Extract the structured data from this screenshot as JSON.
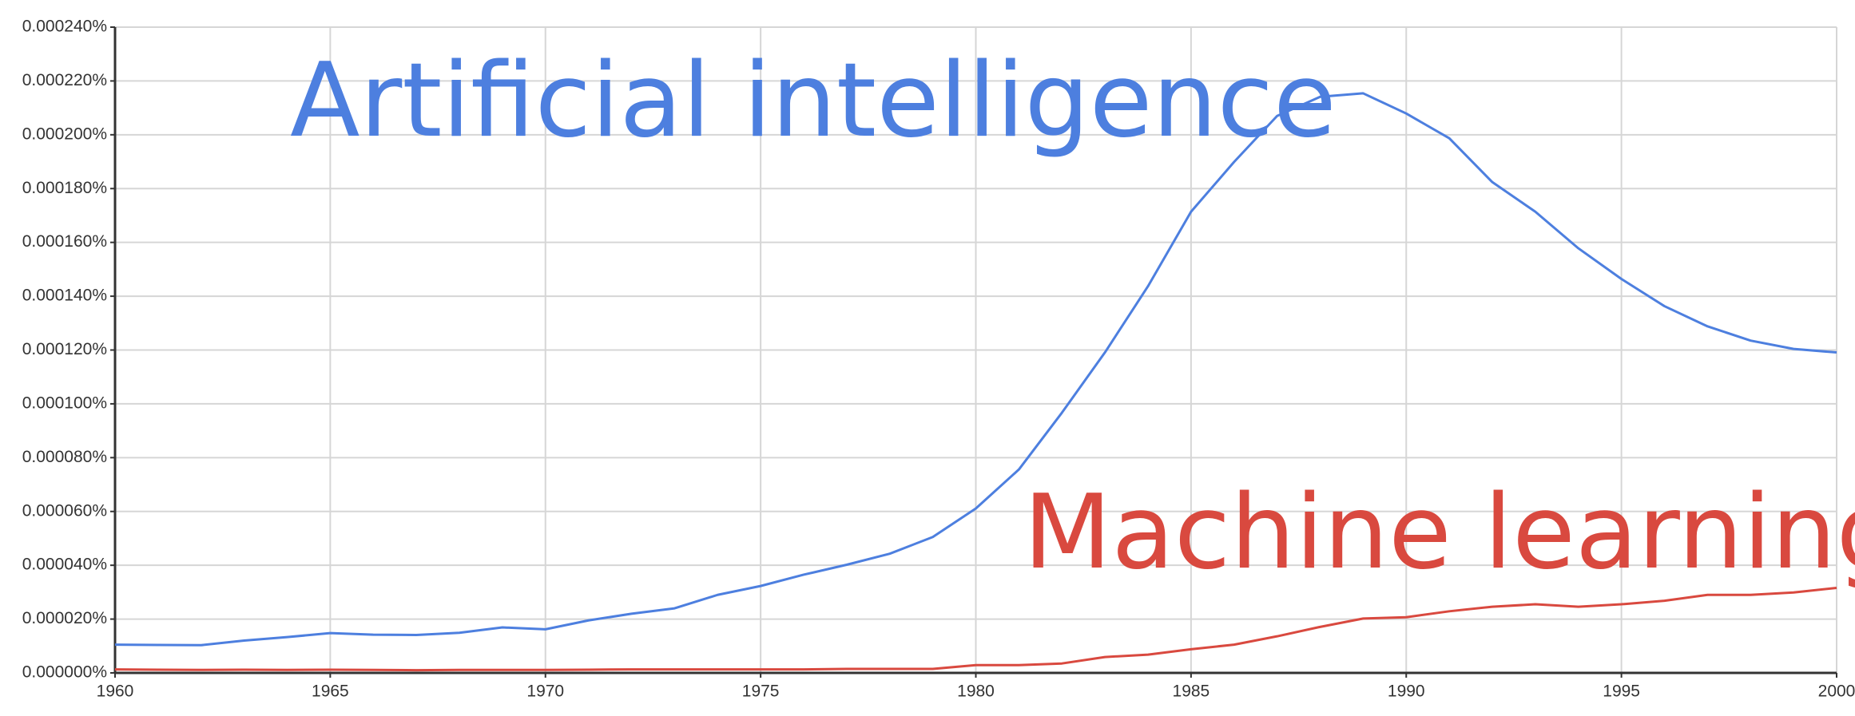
{
  "chart_data": {
    "type": "line",
    "x": [
      1960,
      1961,
      1962,
      1963,
      1964,
      1965,
      1966,
      1967,
      1968,
      1969,
      1970,
      1971,
      1972,
      1973,
      1974,
      1975,
      1976,
      1977,
      1978,
      1979,
      1980,
      1981,
      1982,
      1983,
      1984,
      1985,
      1986,
      1987,
      1988,
      1989,
      1990,
      1991,
      1992,
      1993,
      1994,
      1995,
      1996,
      1997,
      1998,
      1999,
      2000
    ],
    "series": [
      {
        "name": "Artificial intelligence",
        "color": "#4d7fdf",
        "values": [
          1.05e-05,
          1.04e-05,
          1.03e-05,
          1.2e-05,
          1.33e-05,
          1.48e-05,
          1.42e-05,
          1.41e-05,
          1.49e-05,
          1.69e-05,
          1.62e-05,
          1.95e-05,
          2.2e-05,
          2.4e-05,
          2.9e-05,
          3.23e-05,
          3.65e-05,
          4.02e-05,
          4.43e-05,
          5.05e-05,
          6.11e-05,
          7.56e-05,
          9.67e-05,
          0.0001191,
          0.0001437,
          0.0001714,
          0.0001899,
          0.000207,
          0.0002141,
          0.0002154,
          0.0002079,
          0.0001987,
          0.0001824,
          0.0001714,
          0.0001578,
          0.0001464,
          0.0001363,
          0.0001288,
          0.0001235,
          0.0001204,
          0.0001191
        ]
      },
      {
        "name": "Machine learning",
        "color": "#d9493f",
        "values": [
          1.3e-06,
          1.2e-06,
          1.1e-06,
          1.2e-06,
          1.1e-06,
          1.2e-06,
          1.1e-06,
          1e-06,
          1.1e-06,
          1.1e-06,
          1.1e-06,
          1.2e-06,
          1.3e-06,
          1.3e-06,
          1.3e-06,
          1.3e-06,
          1.3e-06,
          1.5e-06,
          1.5e-06,
          1.5e-06,
          2.9e-06,
          2.9e-06,
          3.5e-06,
          5.9e-06,
          6.8e-06,
          8.8e-06,
          1.05e-05,
          1.36e-05,
          1.71e-05,
          2.02e-05,
          2.07e-05,
          2.29e-05,
          2.46e-05,
          2.55e-05,
          2.46e-05,
          2.55e-05,
          2.68e-05,
          2.9e-05,
          2.9e-05,
          2.99e-05,
          3.16e-05
        ]
      }
    ],
    "xlim": [
      1960,
      2000
    ],
    "xticks": [
      1960,
      1965,
      1970,
      1975,
      1980,
      1985,
      1990,
      1995,
      2000
    ],
    "ylim": [
      0,
      0.00024
    ],
    "yticks": [
      {
        "value": 0,
        "label": "0.000000%"
      },
      {
        "value": 2e-05,
        "label": "0.000020%"
      },
      {
        "value": 4e-05,
        "label": "0.000040%"
      },
      {
        "value": 6e-05,
        "label": "0.000060%"
      },
      {
        "value": 8e-05,
        "label": "0.000080%"
      },
      {
        "value": 0.0001,
        "label": "0.000100%"
      },
      {
        "value": 0.00012,
        "label": "0.000120%"
      },
      {
        "value": 0.00014,
        "label": "0.000140%"
      },
      {
        "value": 0.00016,
        "label": "0.000160%"
      },
      {
        "value": 0.00018,
        "label": "0.000180%"
      },
      {
        "value": 0.0002,
        "label": "0.000200%"
      },
      {
        "value": 0.00022,
        "label": "0.000220%"
      },
      {
        "value": 0.00024,
        "label": "0.000240%"
      }
    ],
    "grid": true
  }
}
